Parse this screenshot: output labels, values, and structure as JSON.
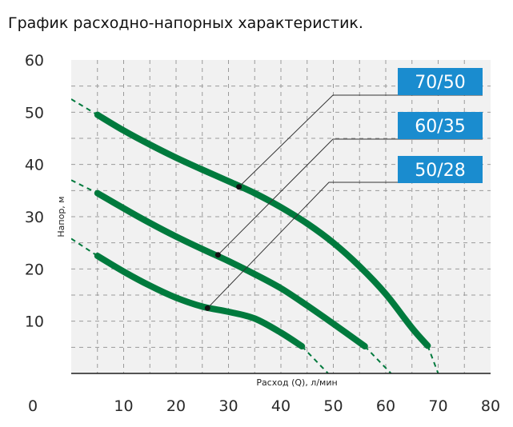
{
  "page": {
    "title": "График расходно-напорных характеристик."
  },
  "chart_data": {
    "type": "line",
    "xlabel": "Расход (Q), л/мин",
    "ylabel": "Напор, м",
    "xlim": [
      0,
      80
    ],
    "ylim": [
      0,
      60
    ],
    "x_ticks": [
      0,
      10,
      20,
      30,
      40,
      50,
      60,
      70,
      80
    ],
    "y_ticks": [
      10,
      20,
      30,
      40,
      50,
      60
    ],
    "grid": true,
    "grid_style": "dashed",
    "curve_color": "#007a3d",
    "badge_color": "#1a8ccf",
    "series": [
      {
        "name": "70/50",
        "x": [
          5,
          10,
          15,
          20,
          25,
          30,
          35,
          40,
          45,
          50,
          55,
          60,
          65,
          68
        ],
        "y": [
          49.5,
          46.5,
          43.8,
          41.3,
          39,
          36.8,
          34.5,
          31.8,
          28.7,
          25,
          20.5,
          15.2,
          8.7,
          5.3
        ],
        "extrapolated_left": [
          [
            0,
            52.5
          ],
          [
            5,
            49.5
          ]
        ],
        "extrapolated_right": [
          [
            68,
            5.3
          ],
          [
            70,
            0
          ]
        ],
        "marker": [
          32,
          35.7
        ]
      },
      {
        "name": "60/35",
        "x": [
          5,
          10,
          15,
          20,
          25,
          30,
          35,
          40,
          45,
          50,
          56
        ],
        "y": [
          34.5,
          31.6,
          28.8,
          26.2,
          23.8,
          21.5,
          19,
          16.3,
          13,
          9.5,
          5.2
        ],
        "extrapolated_left": [
          [
            0,
            37
          ],
          [
            5,
            34.5
          ]
        ],
        "extrapolated_right": [
          [
            56,
            5.2
          ],
          [
            61,
            0
          ]
        ],
        "marker": [
          28,
          22.7
        ]
      },
      {
        "name": "50/28",
        "x": [
          5,
          10,
          15,
          20,
          25,
          30,
          35,
          40,
          44
        ],
        "y": [
          22.5,
          19.5,
          16.8,
          14.5,
          12.8,
          11.8,
          10.5,
          7.8,
          5.2
        ],
        "extrapolated_left": [
          [
            0,
            25.8
          ],
          [
            5,
            22.5
          ]
        ],
        "extrapolated_right": [
          [
            44,
            5.2
          ],
          [
            49,
            0
          ]
        ],
        "marker": [
          26,
          12.5
        ]
      }
    ]
  }
}
